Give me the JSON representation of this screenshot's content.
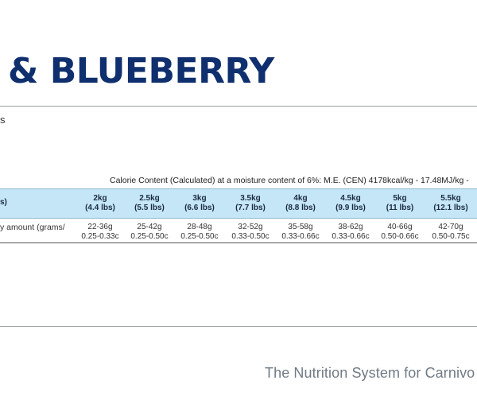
{
  "page": {
    "title": "& BLUEBERRY",
    "subtitle_fragment": "s",
    "calorie_content": "Calorie Content (Calculated) at a moisture content of 6%: M.E. (CEN) 4178kcal/kg - 17.48MJ/kg -",
    "footer": "The Nutrition System for Carnivo"
  },
  "feeding_table": {
    "header_label": "s)",
    "row_label": "y amount (grams/",
    "columns": [
      {
        "weight": "2kg",
        "weight_lbs": "(4.4 lbs)",
        "grams": "22-36g",
        "cups": "0.25-0.33c"
      },
      {
        "weight": "2.5kg",
        "weight_lbs": "(5.5 lbs)",
        "grams": "25-42g",
        "cups": "0.25-0.50c"
      },
      {
        "weight": "3kg",
        "weight_lbs": "(6.6 lbs)",
        "grams": "28-48g",
        "cups": "0.25-0.50c"
      },
      {
        "weight": "3.5kg",
        "weight_lbs": "(7.7 lbs)",
        "grams": "32-52g",
        "cups": "0.33-0.50c"
      },
      {
        "weight": "4kg",
        "weight_lbs": "(8.8 lbs)",
        "grams": "35-58g",
        "cups": "0.33-0.66c"
      },
      {
        "weight": "4.5kg",
        "weight_lbs": "(9.9 lbs)",
        "grams": "38-62g",
        "cups": "0.33-0.66c"
      },
      {
        "weight": "5kg",
        "weight_lbs": "(11 lbs)",
        "grams": "40-66g",
        "cups": "0.50-0.66c"
      },
      {
        "weight": "5.5kg",
        "weight_lbs": "(12.1 lbs)",
        "grams": "42-70g",
        "cups": "0.50-0.75c"
      }
    ]
  },
  "colors": {
    "title": "#0f2f6e",
    "table_header_bg": "#c5e6f7",
    "footer_text": "#707a85"
  }
}
